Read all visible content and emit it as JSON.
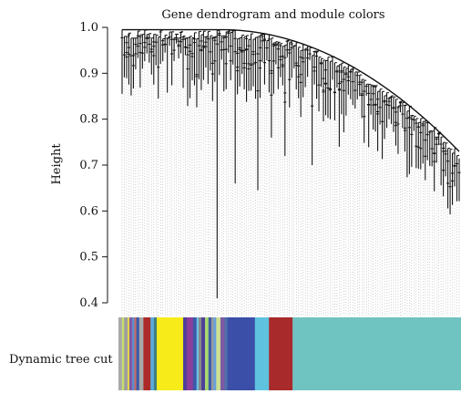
{
  "chart_data": {
    "type": "dendrogram",
    "title": "Gene dendrogram and module colors",
    "xlabel": "",
    "ylabel": "Height",
    "ylim": [
      0.4,
      1.0
    ],
    "yticks": [
      0.4,
      0.5,
      0.6,
      0.7,
      0.8,
      0.9,
      1.0
    ],
    "ytick_labels": [
      "0.4",
      "0.5",
      "0.6",
      "0.7",
      "0.8",
      "0.9",
      "1.0"
    ],
    "grid": false,
    "color_row": {
      "label": "Dynamic tree cut",
      "segments": [
        {
          "color": "#a9a9a9",
          "fraction": 0.01
        },
        {
          "color": "#c8e06a",
          "fraction": 0.006
        },
        {
          "color": "#9e9e9e",
          "fraction": 0.01
        },
        {
          "color": "#e8d84a",
          "fraction": 0.005
        },
        {
          "color": "#7d5aa6",
          "fraction": 0.008
        },
        {
          "color": "#5d8fcf",
          "fraction": 0.006
        },
        {
          "color": "#c06a6a",
          "fraction": 0.006
        },
        {
          "color": "#3b5aa8",
          "fraction": 0.008
        },
        {
          "color": "#a8a8a8",
          "fraction": 0.012
        },
        {
          "color": "#ad2a2a",
          "fraction": 0.02
        },
        {
          "color": "#5aaad8",
          "fraction": 0.01
        },
        {
          "color": "#3f7f7f",
          "fraction": 0.008
        },
        {
          "color": "#f7ec1a",
          "fraction": 0.075
        },
        {
          "color": "#4d3f9a",
          "fraction": 0.01
        },
        {
          "color": "#8a3f9a",
          "fraction": 0.018
        },
        {
          "color": "#3b5aa8",
          "fraction": 0.01
        },
        {
          "color": "#6fbfe0",
          "fraction": 0.006
        },
        {
          "color": "#8a8a8a",
          "fraction": 0.008
        },
        {
          "color": "#4d3f9a",
          "fraction": 0.01
        },
        {
          "color": "#a8d870",
          "fraction": 0.01
        },
        {
          "color": "#3b5aa8",
          "fraction": 0.008
        },
        {
          "color": "#9a9a9a",
          "fraction": 0.006
        },
        {
          "color": "#6a9fd8",
          "fraction": 0.008
        },
        {
          "color": "#cfe090",
          "fraction": 0.012
        },
        {
          "color": "#7d5aa6",
          "fraction": 0.012
        },
        {
          "color": "#4d6fa8",
          "fraction": 0.008
        },
        {
          "color": "#3b4ea8",
          "fraction": 0.078
        },
        {
          "color": "#5fc3e0",
          "fraction": 0.04
        },
        {
          "color": "#a82a2a",
          "fraction": 0.067
        },
        {
          "color": "#6fc3c0",
          "fraction": 0.479
        }
      ]
    }
  }
}
